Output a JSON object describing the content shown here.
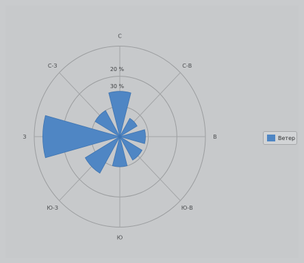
{
  "chart_data": {
    "type": "polar-bar",
    "directions": [
      "С",
      "С-В",
      "В",
      "Ю-В",
      "Ю",
      "Ю-З",
      "З",
      "С-З"
    ],
    "series": [
      {
        "name": "Ветер",
        "values": [
          15,
          7,
          9,
          9,
          10,
          14,
          27,
          10
        ]
      }
    ],
    "ring_labels": [
      "30 %",
      "20 %"
    ],
    "ring_values": [
      10,
      20,
      30
    ],
    "rmax": 30,
    "sector_width_deg": 30,
    "grid": true,
    "legend": "right",
    "colors": {
      "series": "#4f86c4",
      "grid": "#9a9c9e"
    }
  }
}
